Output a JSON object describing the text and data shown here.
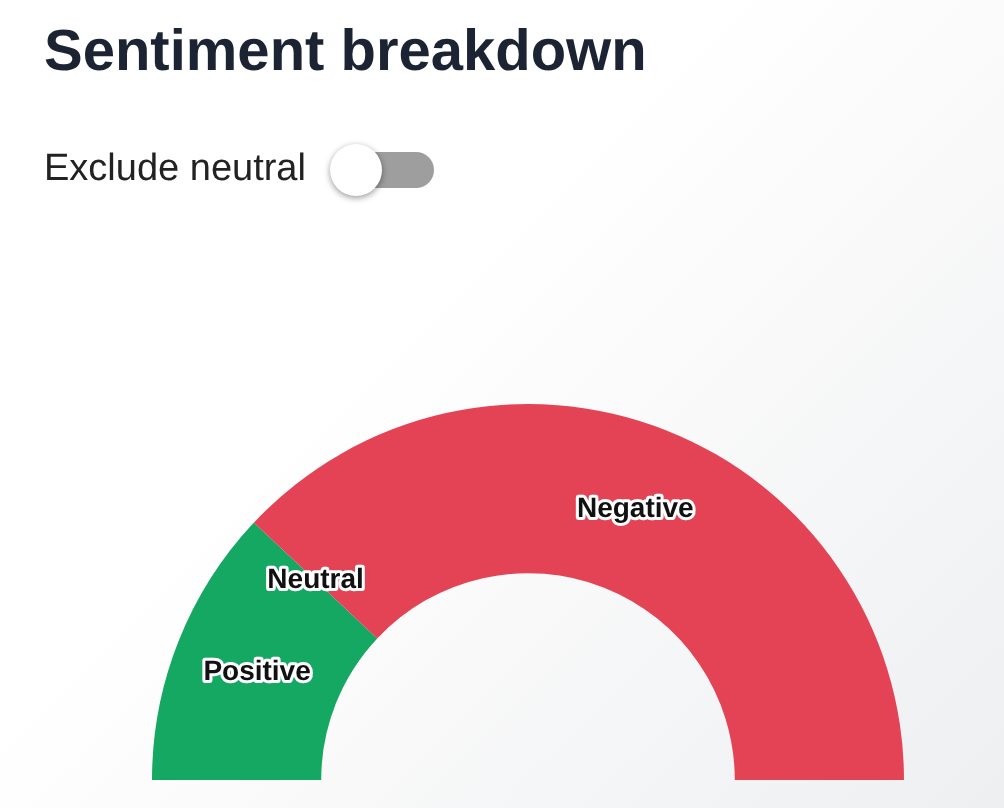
{
  "chart_data": {
    "type": "donut",
    "title": "Sentiment breakdown",
    "annotations": [
      "Exclude neutral"
    ],
    "categories": [
      "Positive",
      "Neutral",
      "Negative"
    ],
    "values": [
      24,
      0,
      76
    ],
    "colors": [
      "#14a862",
      "#e44a5a",
      "#e44356"
    ],
    "data_labels": false,
    "legend": false
  }
}
